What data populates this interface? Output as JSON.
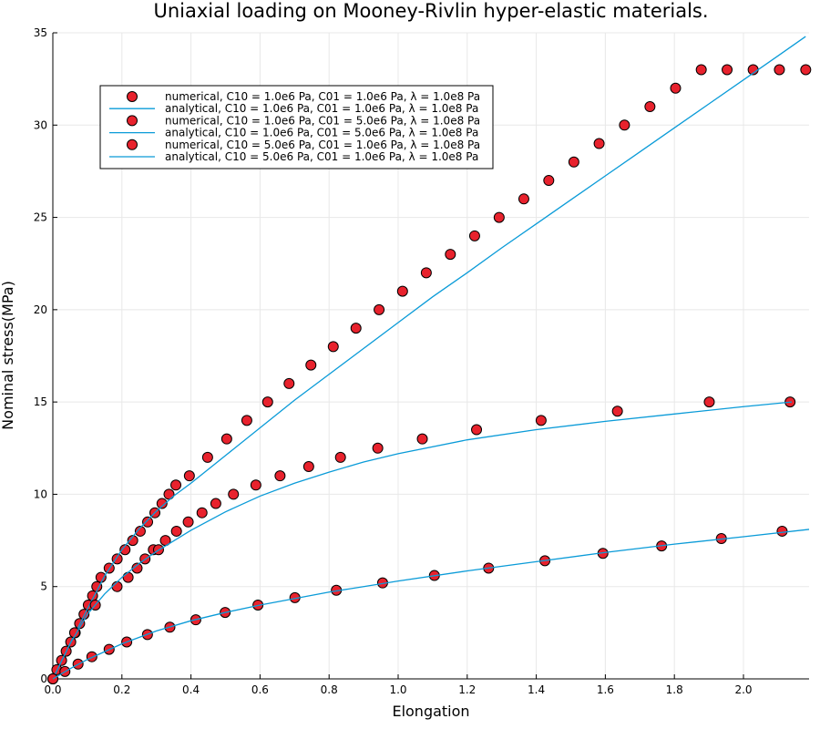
{
  "chart_data": {
    "type": "scatter",
    "title": "Uniaxial loading on Mooney-Rivlin hyper-elastic materials.",
    "xlabel": "Elongation",
    "ylabel": "Nominal stress(MPa)",
    "xlim": [
      0,
      2.19
    ],
    "ylim": [
      0,
      35
    ],
    "xticks": [
      "0.0",
      "0.2",
      "0.4",
      "0.6",
      "0.8",
      "1.0",
      "1.2",
      "1.4",
      "1.6",
      "1.8",
      "2.0"
    ],
    "yticks": [
      "0",
      "5",
      "10",
      "15",
      "20",
      "25",
      "30",
      "35"
    ],
    "grid": true,
    "legend_position": "top-left",
    "marker_color": "#e8222d",
    "line_color": "#0a9bd8",
    "series": [
      {
        "name": "numerical, C10 = 1.0e6 Pa, C01 = 1.0e6 Pa, λ = 1.0e8 Pa",
        "kind": "markers",
        "x": [
          0.0117,
          0.0253,
          0.0386,
          0.0518,
          0.0648,
          0.0776,
          0.0902,
          0.1027,
          0.1151,
          0.1273,
          0.1394,
          0.1631,
          0.1863,
          0.2091,
          0.2313,
          0.2531,
          0.2745,
          0.2955,
          0.3161,
          0.3364,
          0.3563,
          0.3954,
          0.4482,
          0.5036,
          0.5618,
          0.6221,
          0.6841,
          0.7474,
          0.8121,
          0.8779,
          0.9448,
          1.0127,
          1.0815,
          1.1512,
          1.2215,
          1.2925,
          1.364,
          1.4362,
          1.5089,
          1.582,
          1.6554,
          1.7292,
          1.8034,
          1.8778,
          1.9526,
          2.0281,
          2.1041,
          2.1804
        ],
        "y": [
          0.5,
          1.0,
          1.5,
          2.0,
          2.5,
          3.0,
          3.5,
          4.0,
          4.5,
          5.0,
          5.5,
          6.0,
          6.5,
          7.0,
          7.5,
          8.0,
          8.5,
          9.0,
          9.5,
          10.0,
          10.5,
          11.0,
          12.0,
          13.0,
          14.0,
          15.0,
          16.0,
          17.0,
          18.0,
          19.0,
          20.0,
          21.0,
          22.0,
          23.0,
          24.0,
          25.0,
          26.0,
          27.0,
          28.0,
          29.0,
          30.0,
          31.0,
          32.0,
          33.0,
          33.0,
          33.0,
          33.0,
          33.0
        ]
      },
      {
        "name": "analytical, C10 = 1.0e6 Pa, C01 = 1.0e6 Pa, λ = 1.0e8 Pa",
        "kind": "line",
        "x": [
          0.0,
          0.05,
          0.1,
          0.15,
          0.2,
          0.25,
          0.3,
          0.35,
          0.4,
          0.5,
          0.6,
          0.7,
          0.8,
          0.9,
          1.0,
          1.1,
          1.2,
          1.3,
          1.4,
          1.5,
          1.6,
          1.7,
          1.8,
          1.9,
          2.0,
          2.1,
          2.18
        ],
        "y": [
          0.0,
          1.92,
          3.79,
          5.58,
          7.0,
          8.13,
          9.09,
          9.91,
          10.6,
          12.1,
          13.6,
          15.1,
          16.5,
          17.9,
          19.3,
          20.7,
          22.0,
          23.35,
          24.65,
          25.95,
          27.25,
          28.55,
          29.85,
          31.15,
          32.45,
          33.75,
          34.8
        ]
      },
      {
        "name": "numerical, C10 = 1.0e6 Pa, C01 = 5.0e6 Pa, λ = 1.0e8 Pa",
        "kind": "markers",
        "x": [
          0.0,
          0.063,
          0.123,
          0.186,
          0.218,
          0.244,
          0.267,
          0.291,
          0.306,
          0.326,
          0.358,
          0.392,
          0.432,
          0.472,
          0.523,
          0.588,
          0.658,
          0.741,
          0.833,
          0.941,
          1.07,
          1.227,
          1.414,
          1.635,
          1.901,
          2.135
        ],
        "y": [
          0.0,
          2.5,
          4.0,
          5.0,
          5.5,
          6.0,
          6.5,
          7.0,
          7.0,
          7.5,
          8.0,
          8.5,
          9.0,
          9.5,
          10.0,
          10.5,
          11.0,
          11.5,
          12.0,
          12.5,
          13.0,
          13.5,
          14.0,
          14.5,
          15.0,
          15.0
        ]
      },
      {
        "name": "analytical, C10 = 1.0e6 Pa, C01 = 5.0e6 Pa, λ = 1.0e8 Pa",
        "kind": "line",
        "x": [
          0.0,
          0.05,
          0.1,
          0.15,
          0.2,
          0.25,
          0.3,
          0.4,
          0.5,
          0.6,
          0.7,
          0.8,
          0.9,
          1.0,
          1.2,
          1.4,
          1.6,
          1.8,
          2.0,
          2.14
        ],
        "y": [
          0.0,
          1.9,
          3.5,
          4.6,
          5.5,
          6.25,
          6.9,
          8.05,
          9.05,
          9.9,
          10.6,
          11.2,
          11.75,
          12.2,
          12.95,
          13.5,
          13.95,
          14.35,
          14.75,
          15.0
        ]
      },
      {
        "name": "numerical, C10 = 5.0e6 Pa, C01 = 1.0e6 Pa, λ = 1.0e8 Pa",
        "kind": "markers",
        "x": [
          0.0,
          0.035,
          0.073,
          0.113,
          0.163,
          0.214,
          0.274,
          0.339,
          0.414,
          0.499,
          0.594,
          0.701,
          0.821,
          0.955,
          1.105,
          1.262,
          1.425,
          1.593,
          1.763,
          1.936,
          2.112
        ],
        "y": [
          0.0,
          0.4,
          0.8,
          1.2,
          1.6,
          2.0,
          2.4,
          2.8,
          3.2,
          3.6,
          4.0,
          4.4,
          4.8,
          5.2,
          5.6,
          6.0,
          6.4,
          6.8,
          7.2,
          7.6,
          8.0
        ]
      },
      {
        "name": "analytical, C10 = 5.0e6 Pa, C01 = 1.0e6 Pa, λ = 1.0e8 Pa",
        "kind": "line",
        "x": [
          0.0,
          0.05,
          0.1,
          0.2,
          0.3,
          0.4,
          0.5,
          0.6,
          0.7,
          0.8,
          0.9,
          1.0,
          1.2,
          1.4,
          1.6,
          1.8,
          2.0,
          2.19
        ],
        "y": [
          0.0,
          0.55,
          1.05,
          1.9,
          2.6,
          3.15,
          3.6,
          4.0,
          4.35,
          4.7,
          5.0,
          5.3,
          5.85,
          6.35,
          6.85,
          7.3,
          7.7,
          8.1
        ]
      }
    ]
  }
}
